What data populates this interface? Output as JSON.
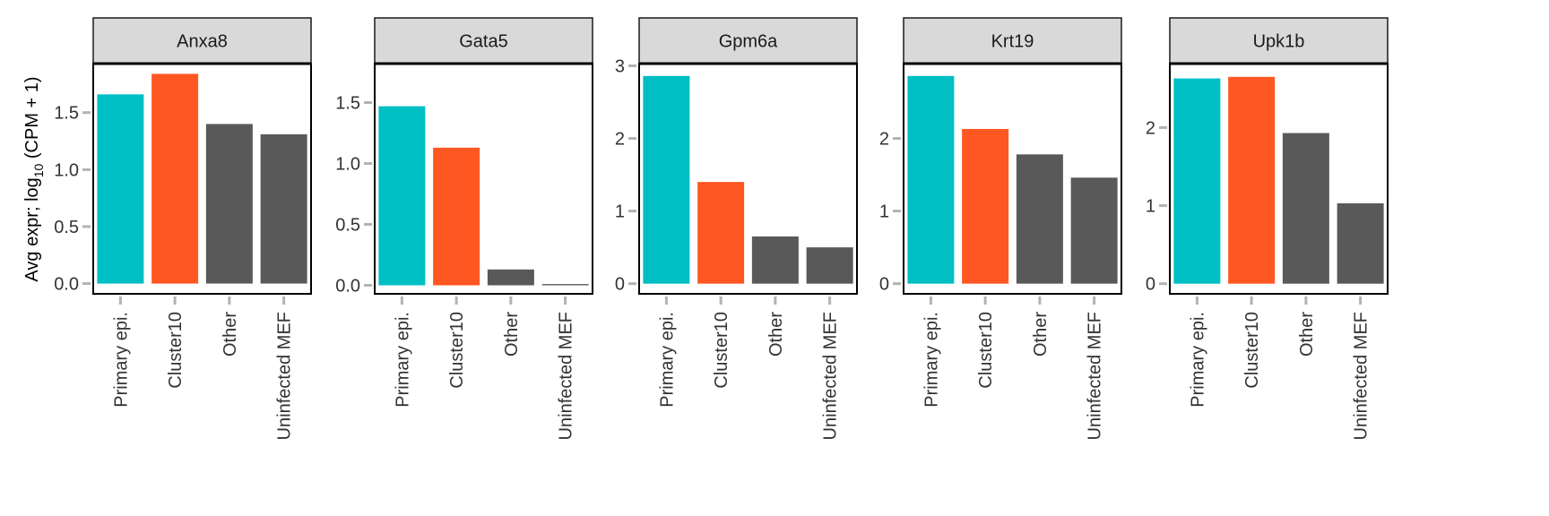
{
  "colors": {
    "primary_epi": "#00BFC4",
    "cluster10": "#FF5722",
    "other": "#595959",
    "strip_fill": "#D9D9D9",
    "tick": "#B3B3B3"
  },
  "chart_data": {
    "type": "bar",
    "ylabel": {
      "prefix": "Avg expr; log",
      "subscript": "10",
      "suffix": " (CPM + 1)"
    },
    "categories": [
      "Primary epi.",
      "Cluster10",
      "Other",
      "Uninfected MEF"
    ],
    "bar_colors": [
      "primary_epi",
      "cluster10",
      "other",
      "other"
    ],
    "facets": [
      {
        "name": "Anxa8",
        "values": [
          1.66,
          1.84,
          1.4,
          1.31
        ],
        "ylim": [
          -0.09,
          1.93
        ],
        "yticks": [
          0.0,
          0.5,
          1.0,
          1.5
        ],
        "ytick_labels": [
          "0.0",
          "0.5",
          "1.0",
          "1.5"
        ]
      },
      {
        "name": "Gata5",
        "values": [
          1.47,
          1.13,
          0.13,
          0.01
        ],
        "ylim": [
          -0.07,
          1.82
        ],
        "yticks": [
          0.0,
          0.5,
          1.0,
          1.5
        ],
        "ytick_labels": [
          "0.0",
          "0.5",
          "1.0",
          "1.5"
        ]
      },
      {
        "name": "Gpm6a",
        "values": [
          2.86,
          1.4,
          0.65,
          0.5
        ],
        "ylim": [
          -0.14,
          3.03
        ],
        "yticks": [
          0,
          1,
          2,
          3
        ],
        "ytick_labels": [
          "0",
          "1",
          "2",
          "3"
        ]
      },
      {
        "name": "Krt19",
        "values": [
          2.86,
          2.13,
          1.78,
          1.46
        ],
        "ylim": [
          -0.14,
          3.03
        ],
        "yticks": [
          0,
          1,
          2
        ],
        "ytick_labels": [
          "0",
          "1",
          "2"
        ]
      },
      {
        "name": "Upk1b",
        "values": [
          2.63,
          2.65,
          1.93,
          1.03
        ],
        "ylim": [
          -0.13,
          2.82
        ],
        "yticks": [
          0,
          1,
          2
        ],
        "ytick_labels": [
          "0",
          "1",
          "2"
        ]
      }
    ]
  }
}
